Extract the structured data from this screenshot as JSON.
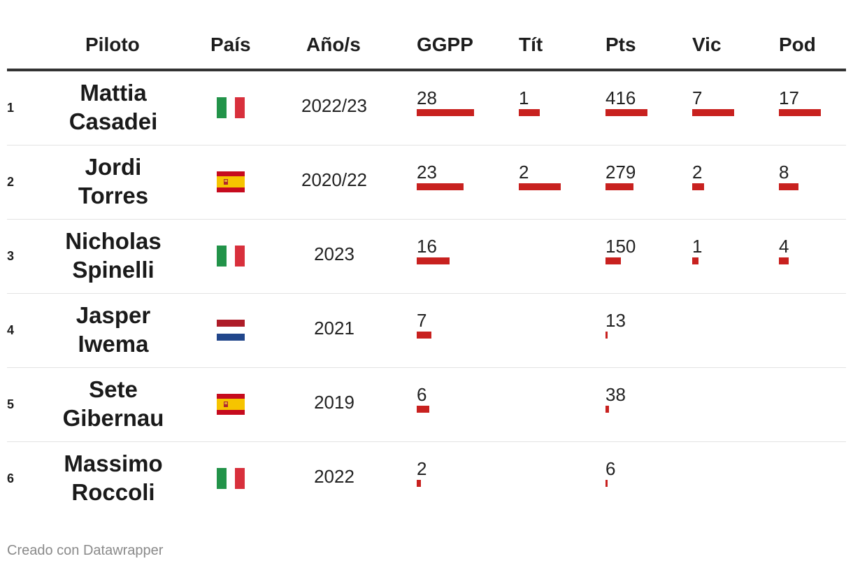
{
  "colors": {
    "bar": "#c8211f",
    "header_rule": "#333333",
    "row_rule": "#e3e3e3"
  },
  "header": {
    "rider": "Piloto",
    "country": "País",
    "years": "Año/s",
    "ggpp": "GGPP",
    "titles": "Tít",
    "points": "Pts",
    "wins": "Vic",
    "podiums": "Pod"
  },
  "chart_data": {
    "type": "table",
    "columns": [
      "",
      "Piloto",
      "País",
      "Año/s",
      "GGPP",
      "Tít",
      "Pts",
      "Vic",
      "Pod"
    ],
    "rows": [
      {
        "rank": "1",
        "name": "Mattia\nCasadei",
        "flag": "italy-flag",
        "years": "2022/23",
        "ggpp": 28,
        "titles": 1,
        "points": 416,
        "wins": 7,
        "podiums": 17
      },
      {
        "rank": "2",
        "name": "Jordi\nTorres",
        "flag": "spain-flag",
        "years": "2020/22",
        "ggpp": 23,
        "titles": 2,
        "points": 279,
        "wins": 2,
        "podiums": 8
      },
      {
        "rank": "3",
        "name": "Nicholas\nSpinelli",
        "flag": "italy-flag",
        "years": "2023",
        "ggpp": 16,
        "titles": null,
        "points": 150,
        "wins": 1,
        "podiums": 4
      },
      {
        "rank": "4",
        "name": "Jasper\nIwema",
        "flag": "netherlands-flag",
        "years": "2021",
        "ggpp": 7,
        "titles": null,
        "points": 13,
        "wins": null,
        "podiums": null
      },
      {
        "rank": "5",
        "name": "Sete\nGibernau",
        "flag": "spain-flag",
        "years": "2019",
        "ggpp": 6,
        "titles": null,
        "points": 38,
        "wins": null,
        "podiums": null
      },
      {
        "rank": "6",
        "name": "Massimo\nRoccoli",
        "flag": "italy-flag",
        "years": "2022",
        "ggpp": 2,
        "titles": null,
        "points": 6,
        "wins": null,
        "podiums": null
      }
    ]
  },
  "footer": "Creado con Datawrapper"
}
